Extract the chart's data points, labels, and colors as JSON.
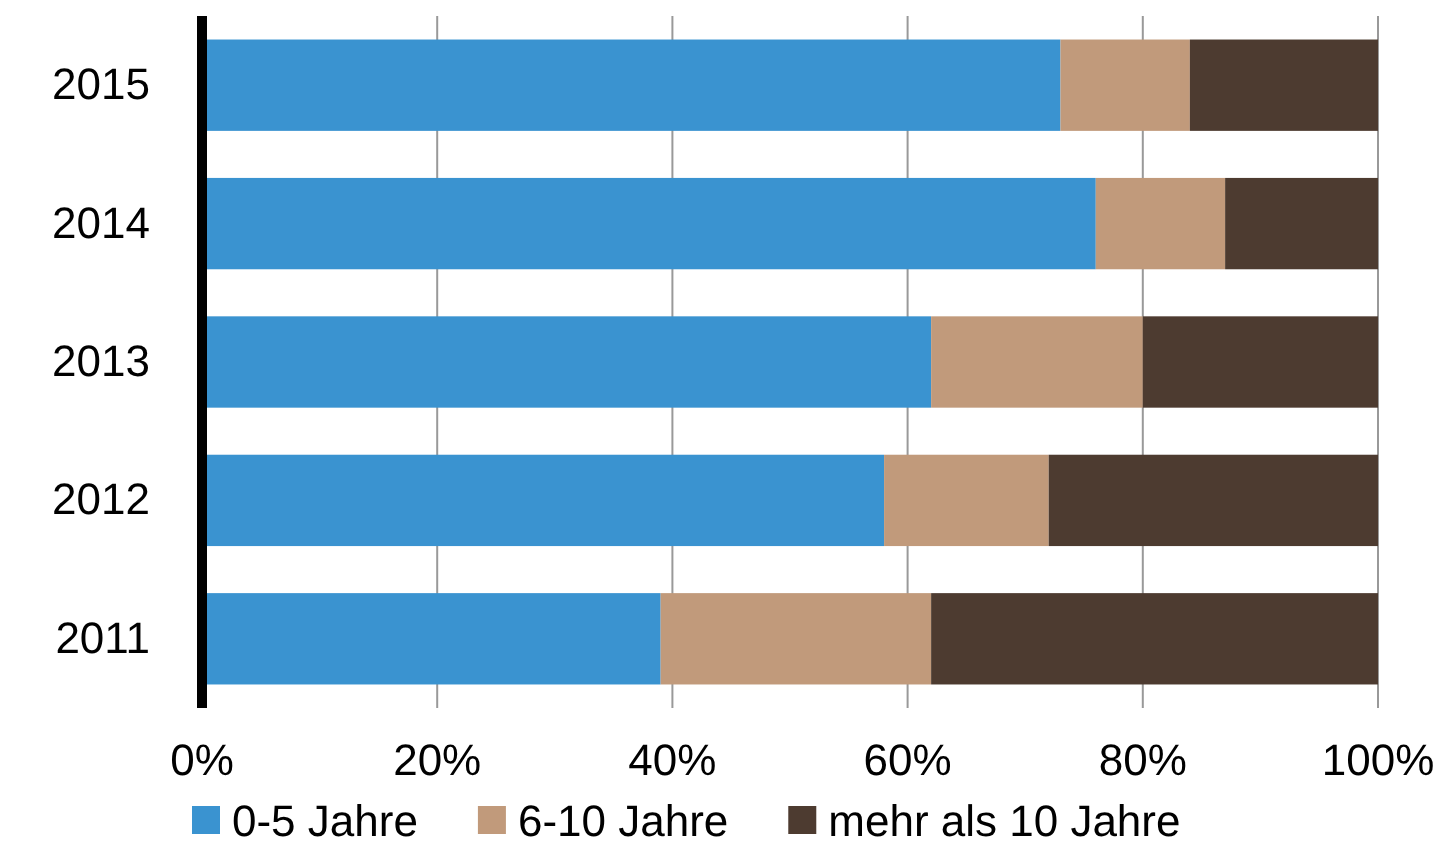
{
  "chart_data": {
    "type": "bar",
    "orientation": "horizontal",
    "stacked": true,
    "categories": [
      "2015",
      "2014",
      "2013",
      "2012",
      "2011"
    ],
    "series": [
      {
        "name": "0-5 Jahre",
        "color": "#3a93d0",
        "values": [
          73,
          76,
          62,
          58,
          39
        ]
      },
      {
        "name": "6-10 Jahre",
        "color": "#c19a7b",
        "values": [
          11,
          11,
          18,
          14,
          23
        ]
      },
      {
        "name": "mehr als 10 Jahre",
        "color": "#4d3b30",
        "values": [
          16,
          13,
          20,
          28,
          38
        ]
      }
    ],
    "xlim": [
      0,
      100
    ],
    "xticks": [
      {
        "value": 0,
        "label": "0%"
      },
      {
        "value": 20,
        "label": "20%"
      },
      {
        "value": 40,
        "label": "40%"
      },
      {
        "value": 60,
        "label": "60%"
      },
      {
        "value": 80,
        "label": "80%"
      },
      {
        "value": 100,
        "label": "100%"
      }
    ],
    "grid": "x",
    "legend": "bottom"
  }
}
